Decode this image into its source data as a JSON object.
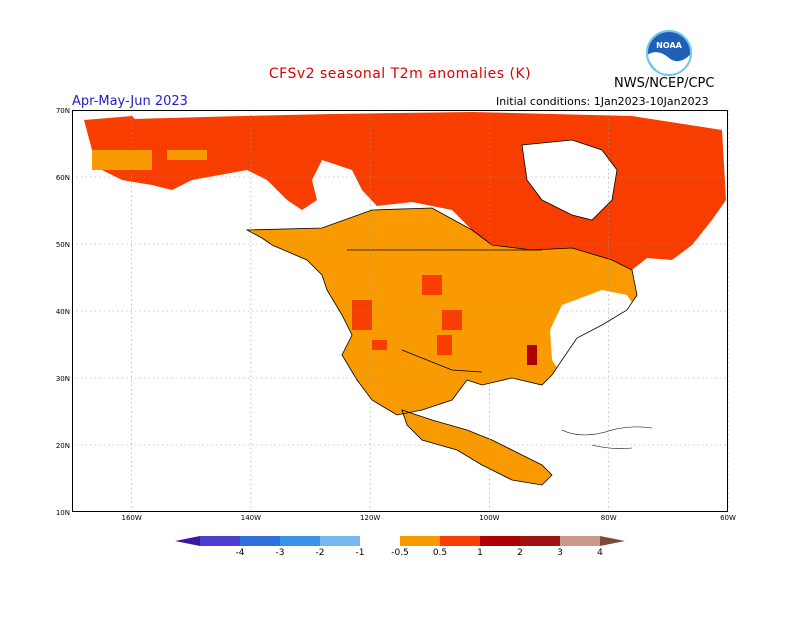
{
  "header": {
    "title": "CFSv2 seasonal T2m anomalies (K)",
    "organization": "NWS/NCEP/CPC",
    "period": "Apr-May-Jun 2023",
    "initial_conditions": "Initial conditions: 1Jan2023-10Jan2023",
    "logo_text": "NOAA"
  },
  "map": {
    "lat_labels": [
      "70N",
      "60N",
      "50N",
      "40N",
      "30N",
      "20N",
      "10N"
    ],
    "lon_labels": [
      "160W",
      "140W",
      "120W",
      "100W",
      "80W",
      "60W"
    ],
    "lat_range": [
      10,
      70
    ],
    "lon_range": [
      -170,
      -60
    ],
    "grid": "dotted"
  },
  "colorbar": {
    "labels": [
      "-4",
      "-3",
      "-2",
      "-1",
      "-0.5",
      "0.5",
      "1",
      "2",
      "3",
      "4"
    ],
    "colors": [
      "#3a1a9a",
      "#4b3fce",
      "#2f6fdc",
      "#3b93e8",
      "#78b8f0",
      "#ffffff",
      "#f99b00",
      "#f83d00",
      "#ae0000",
      "#9f1212",
      "#c99a8a",
      "#7a4a3a"
    ]
  }
}
